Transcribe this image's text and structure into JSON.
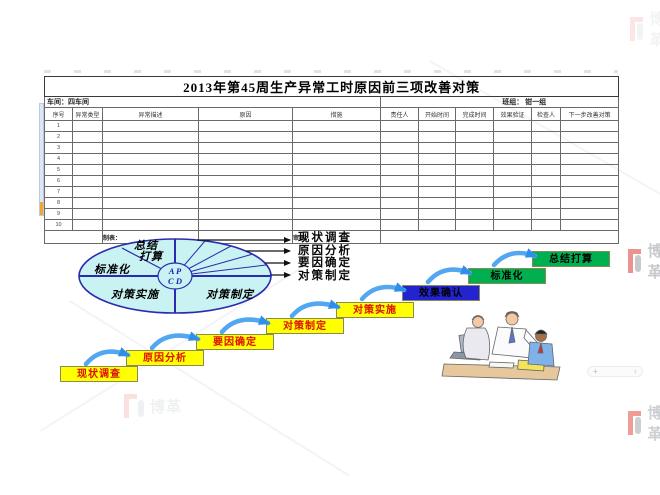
{
  "table": {
    "title": "2013年第45周生产异常工时原因前三项改善对策",
    "workshop": "车间：四车间",
    "team": "班组： 钳一组",
    "columns": [
      "序号",
      "异常类型",
      "异常描述",
      "原因",
      "措施",
      "责任人",
      "开始时间",
      "完成时间",
      "效果验证",
      "检查人",
      "下一步改善对策"
    ],
    "row_numbers": [
      "1",
      "2",
      "3",
      "4",
      "5",
      "6",
      "7",
      "8",
      "9",
      "10"
    ],
    "maker_label": "制表：",
    "reviewer_label": "审核："
  },
  "pdca": {
    "center_top": "A  P",
    "center_bottom": "C  D",
    "sector_summary_line1": "总结",
    "sector_summary_line2": "打算",
    "sector_standardize": "标准化",
    "sector_implement": "对策实施",
    "sector_formulate": "对策制定"
  },
  "step_list": {
    "items": [
      "现状调查",
      "原因分析",
      "要因确定",
      "对策制定"
    ]
  },
  "staircase": {
    "steps": [
      {
        "label": "现状调查",
        "bg": "#ffff00",
        "fg": "#dd1100"
      },
      {
        "label": "原因分析",
        "bg": "#ffff00",
        "fg": "#dd1100"
      },
      {
        "label": "要因确定",
        "bg": "#ffff00",
        "fg": "#dd1100"
      },
      {
        "label": "对策制定",
        "bg": "#ffff00",
        "fg": "#dd1100"
      },
      {
        "label": "对策实施",
        "bg": "#ffff00",
        "fg": "#dd1100"
      },
      {
        "label": "效果确认",
        "bg": "#2323cf",
        "fg": "#000000"
      },
      {
        "label": "标准化",
        "bg": "#00b050",
        "fg": "#000000"
      },
      {
        "label": "总结打算",
        "bg": "#00b050",
        "fg": "#000000"
      }
    ]
  },
  "watermark": {
    "brand": "博革"
  },
  "page_chrome": {
    "scroll_plus": "+",
    "scroll_back": "‹"
  },
  "colors": {
    "circle_fill": "#c9f2f2",
    "circle_line": "#2b2bb0",
    "arrow_blue": "#53a7f0",
    "logo_red": "#e03a2f",
    "logo_gray": "#9aa0a6"
  }
}
